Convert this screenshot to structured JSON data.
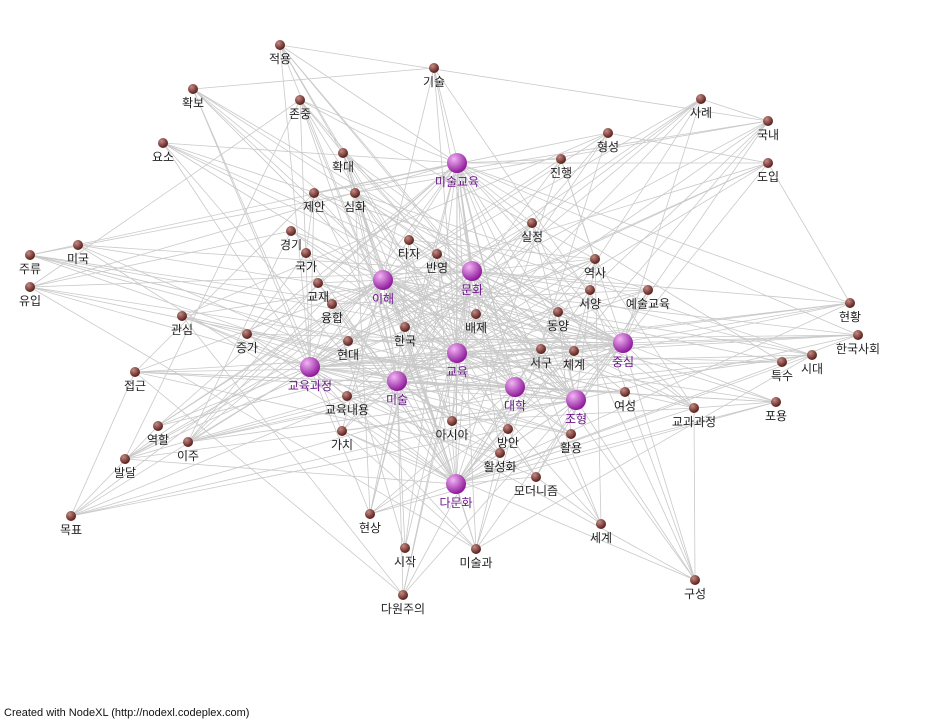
{
  "footer": "Created with NodeXL (http://nodexl.codeplex.com)",
  "colors": {
    "major": "#8e1a9a",
    "minor": "#5a1f1a",
    "edge": "#c9c9c9",
    "major_label": "#6e1a8a",
    "minor_label": "#222222"
  },
  "nodes": [
    {
      "id": "미술교육",
      "major": true
    },
    {
      "id": "문화",
      "major": true
    },
    {
      "id": "이해",
      "major": true
    },
    {
      "id": "교육",
      "major": true
    },
    {
      "id": "중심",
      "major": true
    },
    {
      "id": "교육과정",
      "major": true
    },
    {
      "id": "미술",
      "major": true
    },
    {
      "id": "대학",
      "major": true
    },
    {
      "id": "조형",
      "major": true
    },
    {
      "id": "다문화",
      "major": true
    },
    {
      "id": "적용",
      "major": false
    },
    {
      "id": "기술",
      "major": false
    },
    {
      "id": "확보",
      "major": false
    },
    {
      "id": "존중",
      "major": false
    },
    {
      "id": "사례",
      "major": false
    },
    {
      "id": "국내",
      "major": false
    },
    {
      "id": "형성",
      "major": false
    },
    {
      "id": "요소",
      "major": false
    },
    {
      "id": "확대",
      "major": false
    },
    {
      "id": "진행",
      "major": false
    },
    {
      "id": "도입",
      "major": false
    },
    {
      "id": "제안",
      "major": false
    },
    {
      "id": "심화",
      "major": false
    },
    {
      "id": "실정",
      "major": false
    },
    {
      "id": "경기",
      "major": false
    },
    {
      "id": "타자",
      "major": false
    },
    {
      "id": "반영",
      "major": false
    },
    {
      "id": "주류",
      "major": false
    },
    {
      "id": "미국",
      "major": false
    },
    {
      "id": "국가",
      "major": false
    },
    {
      "id": "역사",
      "major": false
    },
    {
      "id": "유입",
      "major": false
    },
    {
      "id": "교재",
      "major": false
    },
    {
      "id": "서양",
      "major": false
    },
    {
      "id": "예술교육",
      "major": false
    },
    {
      "id": "현황",
      "major": false
    },
    {
      "id": "관심",
      "major": false
    },
    {
      "id": "융합",
      "major": false
    },
    {
      "id": "배제",
      "major": false
    },
    {
      "id": "동양",
      "major": false
    },
    {
      "id": "한국",
      "major": false
    },
    {
      "id": "증가",
      "major": false
    },
    {
      "id": "현대",
      "major": false
    },
    {
      "id": "한국사회",
      "major": false
    },
    {
      "id": "시대",
      "major": false
    },
    {
      "id": "서구",
      "major": false
    },
    {
      "id": "체계",
      "major": false
    },
    {
      "id": "특수",
      "major": false
    },
    {
      "id": "접근",
      "major": false
    },
    {
      "id": "교육내용",
      "major": false
    },
    {
      "id": "여성",
      "major": false
    },
    {
      "id": "교과과정",
      "major": false
    },
    {
      "id": "포용",
      "major": false
    },
    {
      "id": "아시아",
      "major": false
    },
    {
      "id": "역할",
      "major": false
    },
    {
      "id": "방안",
      "major": false
    },
    {
      "id": "활용",
      "major": false
    },
    {
      "id": "가치",
      "major": false
    },
    {
      "id": "이주",
      "major": false
    },
    {
      "id": "활성화",
      "major": false
    },
    {
      "id": "발달",
      "major": false
    },
    {
      "id": "모더니즘",
      "major": false
    },
    {
      "id": "목표",
      "major": false
    },
    {
      "id": "현상",
      "major": false
    },
    {
      "id": "세계",
      "major": false
    },
    {
      "id": "시작",
      "major": false
    },
    {
      "id": "미술과",
      "major": false
    },
    {
      "id": "구성",
      "major": false
    },
    {
      "id": "다원주의",
      "major": false
    }
  ]
}
